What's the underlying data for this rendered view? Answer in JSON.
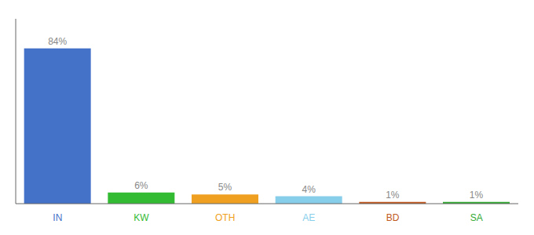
{
  "chart_data": {
    "type": "bar",
    "categories": [
      "IN",
      "KW",
      "OTH",
      "AE",
      "BD",
      "SA"
    ],
    "values": [
      84,
      6,
      5,
      4,
      1,
      1
    ],
    "value_labels": [
      "84%",
      "6%",
      "5%",
      "4%",
      "1%",
      "1%"
    ],
    "colors": [
      "#4472c9",
      "#33bb33",
      "#f0a020",
      "#87ceeb",
      "#c05820",
      "#33aa33"
    ],
    "ylim": [
      0,
      100
    ],
    "data_labels": true,
    "grid": false,
    "tick_labels": "x"
  }
}
